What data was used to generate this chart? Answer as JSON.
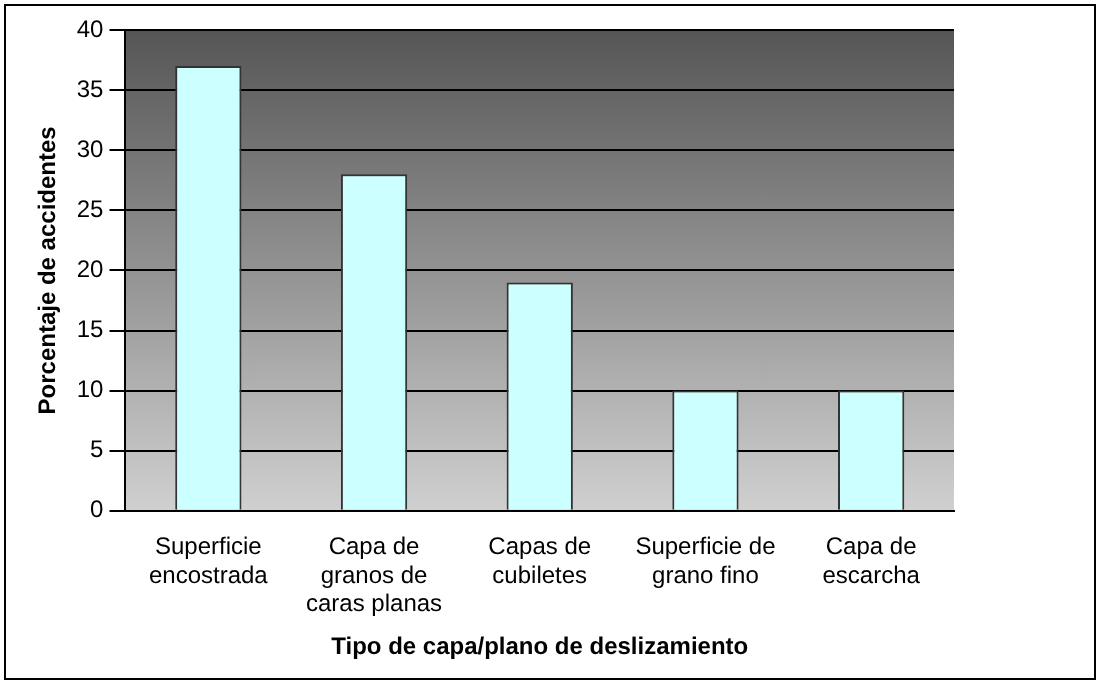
{
  "chart_data": {
    "type": "bar",
    "xlabel": "Tipo de capa/plano de deslizamiento",
    "ylabel": "Porcentaje de accidentes",
    "categories": [
      "Superficie encostrada",
      "Capa de granos de caras planas",
      "Capas de cubiletes",
      "Superficie de grano fino",
      "Capa de escarcha"
    ],
    "values": [
      37,
      28,
      19,
      10,
      10
    ],
    "color": "#ccffff",
    "ylim": [
      0,
      40
    ],
    "yticks": [
      0,
      5,
      10,
      15,
      20,
      25,
      30,
      35,
      40
    ],
    "grid": "y"
  }
}
